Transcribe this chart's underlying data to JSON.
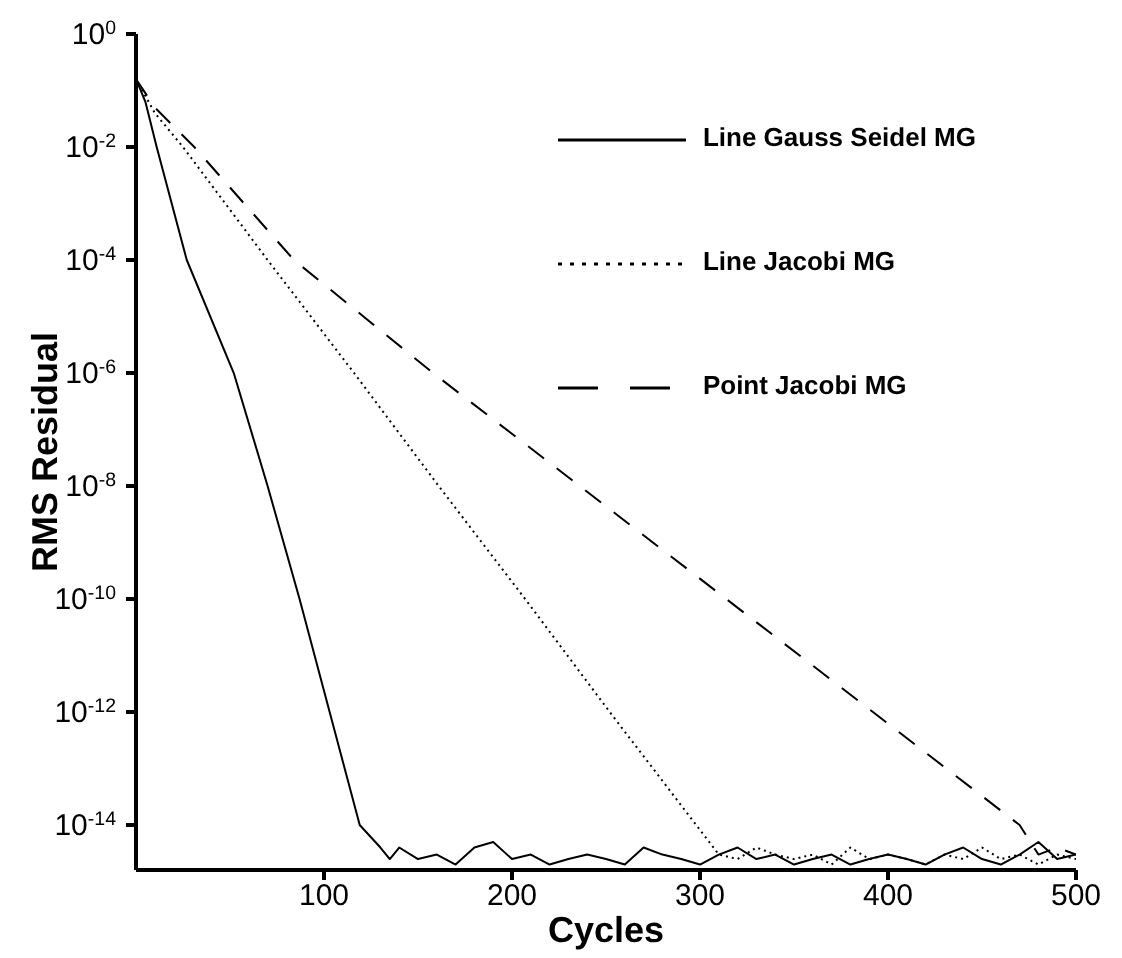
{
  "chart_data": {
    "type": "line",
    "xlabel": "Cycles",
    "ylabel": "RMS Residual",
    "log": "y",
    "marker": "none",
    "legend": "top right",
    "grid": false,
    "xlim": [
      0,
      500
    ],
    "xticks": [
      100,
      200,
      300,
      400,
      500
    ],
    "ylim": [
      1.6e-15,
      1
    ],
    "yticks": [
      {
        "value": 1,
        "label": "10$^{0}$"
      },
      {
        "value": 0.01,
        "label": "10$^{-2}$"
      },
      {
        "value": 0.0001,
        "label": "10$^{-4}$"
      },
      {
        "value": 1e-06,
        "label": "10$^{-6}$"
      },
      {
        "value": 1e-08,
        "label": "10$^{-8}$"
      },
      {
        "value": 1e-10,
        "label": "10$^{-10}$"
      },
      {
        "value": 1e-12,
        "label": "10$^{-12}$"
      },
      {
        "value": 1e-14,
        "label": "10$^{-14}$"
      }
    ],
    "series": [
      {
        "name": "Line Gauss Seidel MG",
        "color": "#000000",
        "line_style": "solid",
        "x": [
          0,
          5,
          11,
          27,
          52,
          70,
          87,
          103,
          119,
          130,
          135,
          140,
          150,
          160,
          170,
          180,
          190,
          200,
          210,
          220,
          230,
          240,
          250,
          260,
          270,
          280,
          290,
          300,
          310,
          320,
          330,
          340,
          350,
          360,
          370,
          380,
          390,
          400,
          410,
          420,
          430,
          440,
          450,
          460,
          470,
          480,
          490,
          500
        ],
        "values": [
          0.16,
          0.063,
          0.01,
          0.0001,
          1e-06,
          1e-08,
          1e-10,
          1e-12,
          1e-14,
          4e-15,
          2.5e-15,
          4e-15,
          2.5e-15,
          3e-15,
          2e-15,
          4e-15,
          5e-15,
          2.5e-15,
          3e-15,
          2e-15,
          2.5e-15,
          3e-15,
          2.5e-15,
          2e-15,
          4e-15,
          3e-15,
          2.5e-15,
          2e-15,
          3e-15,
          4e-15,
          2.5e-15,
          3e-15,
          2e-15,
          2.5e-15,
          3e-15,
          2e-15,
          2.5e-15,
          3e-15,
          2.5e-15,
          2e-15,
          3e-15,
          4e-15,
          2.5e-15,
          2e-15,
          3e-15,
          5e-15,
          2.5e-15,
          3e-15
        ]
      },
      {
        "name": "Line Jacobi MG",
        "color": "#000000",
        "line_style": "dotted",
        "x": [
          0,
          10,
          25,
          70,
          116,
          161,
          207,
          252,
          298,
          310,
          320,
          330,
          340,
          350,
          360,
          370,
          380,
          390,
          400,
          410,
          420,
          430,
          440,
          450,
          460,
          470,
          480,
          490,
          500
        ],
        "values": [
          0.16,
          0.04,
          0.01,
          0.0001,
          1e-06,
          1e-08,
          1e-10,
          1e-12,
          1e-14,
          3e-15,
          2.5e-15,
          4e-15,
          3e-15,
          2.5e-15,
          3e-15,
          2e-15,
          4e-15,
          2.5e-15,
          3e-15,
          2.5e-15,
          2e-15,
          3e-15,
          2.5e-15,
          4e-15,
          2.5e-15,
          3e-15,
          2e-15,
          3e-15,
          2.5e-15
        ]
      },
      {
        "name": "Point Jacobi MG",
        "color": "#000000",
        "line_style": "dashed",
        "x": [
          0,
          10,
          31,
          84,
          158,
          236,
          314,
          392,
          470,
          480,
          490,
          500
        ],
        "values": [
          0.16,
          0.05,
          0.01,
          0.0001,
          1e-06,
          1e-08,
          1e-10,
          1e-12,
          1e-14,
          3e-15,
          4e-15,
          3e-15
        ]
      }
    ]
  }
}
